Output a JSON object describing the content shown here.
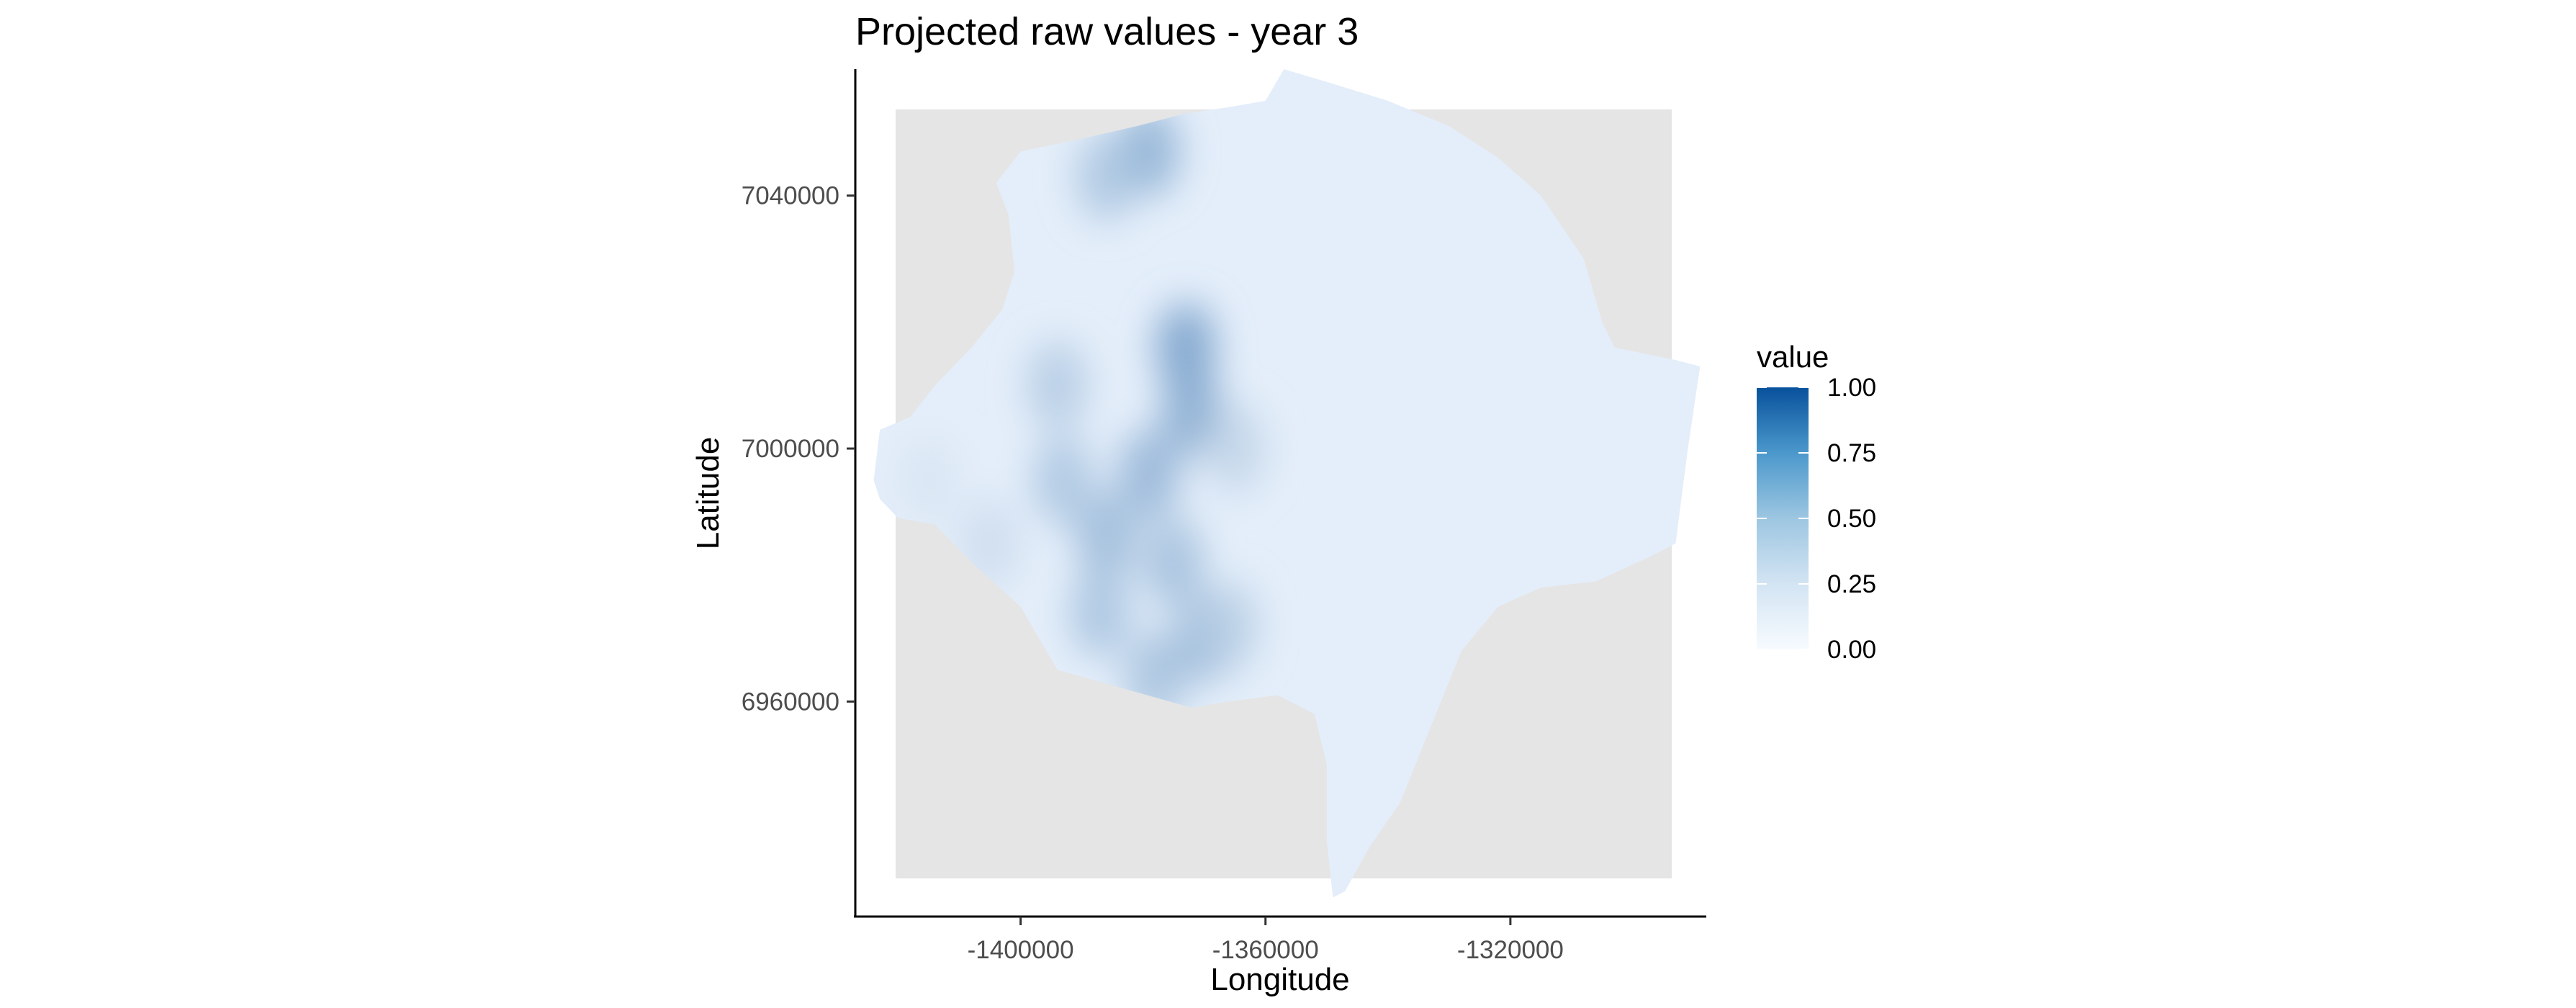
{
  "chart_data": {
    "type": "heatmap",
    "title": "Projected raw values - year 3",
    "xlabel": "Longitude",
    "ylabel": "Latitude",
    "x_ticks": [
      {
        "value": -1400000,
        "label": "-1400000"
      },
      {
        "value": -1360000,
        "label": "-1360000"
      },
      {
        "value": -1320000,
        "label": "-1320000"
      }
    ],
    "y_ticks": [
      {
        "value": 7040000,
        "label": "7040000"
      },
      {
        "value": 7000000,
        "label": "7000000"
      },
      {
        "value": 6960000,
        "label": "6960000"
      }
    ],
    "xlim": [
      -1427000,
      -1288000
    ],
    "ylim": [
      6926000,
      7060000
    ],
    "grid": false,
    "panel_background": "#e5e5e5",
    "legend": {
      "title": "value",
      "placement": "right",
      "color_low": "#f7fbff",
      "color_high": "#08519c",
      "range": [
        0,
        1
      ],
      "breaks": [
        {
          "value": 0.0,
          "label": "0.00"
        },
        {
          "value": 0.25,
          "label": "0.25"
        },
        {
          "value": 0.5,
          "label": "0.50"
        },
        {
          "value": 0.75,
          "label": "0.75"
        },
        {
          "value": 1.0,
          "label": "1.00"
        }
      ]
    },
    "region_outline": [
      [
        -1357000,
        7060000
      ],
      [
        -1350000,
        7058000
      ],
      [
        -1340000,
        7055000
      ],
      [
        -1330000,
        7051000
      ],
      [
        -1322000,
        7046000
      ],
      [
        -1315000,
        7040000
      ],
      [
        -1308000,
        7030000
      ],
      [
        -1305000,
        7020000
      ],
      [
        -1303000,
        7016000
      ],
      [
        -1293000,
        7014000
      ],
      [
        -1289000,
        7013000
      ],
      [
        -1291000,
        7000000
      ],
      [
        -1293000,
        6985000
      ],
      [
        -1297000,
        6983000
      ],
      [
        -1306000,
        6979000
      ],
      [
        -1315000,
        6978000
      ],
      [
        -1322000,
        6975000
      ],
      [
        -1328000,
        6968000
      ],
      [
        -1333000,
        6956000
      ],
      [
        -1338000,
        6944000
      ],
      [
        -1343000,
        6937000
      ],
      [
        -1347000,
        6930000
      ],
      [
        -1349000,
        6929000
      ],
      [
        -1350000,
        6938000
      ],
      [
        -1350000,
        6950000
      ],
      [
        -1352000,
        6958000
      ],
      [
        -1358000,
        6961000
      ],
      [
        -1366000,
        6960000
      ],
      [
        -1372000,
        6959000
      ],
      [
        -1383000,
        6962000
      ],
      [
        -1394000,
        6965000
      ],
      [
        -1400000,
        6975000
      ],
      [
        -1408000,
        6982000
      ],
      [
        -1414000,
        6988000
      ],
      [
        -1420000,
        6989000
      ],
      [
        -1423000,
        6992000
      ],
      [
        -1425000,
        6998000
      ],
      [
        -1424000,
        6995000
      ],
      [
        -1423000,
        7003000
      ],
      [
        -1418000,
        7005000
      ],
      [
        -1414000,
        7010000
      ],
      [
        -1408000,
        7016000
      ],
      [
        -1403000,
        7022000
      ],
      [
        -1401000,
        7028000
      ],
      [
        -1402000,
        7037000
      ],
      [
        -1404000,
        7042000
      ],
      [
        -1400000,
        7047000
      ],
      [
        -1390000,
        7049000
      ],
      [
        -1381000,
        7051000
      ],
      [
        -1373000,
        7053000
      ],
      [
        -1366000,
        7054000
      ],
      [
        -1360000,
        7055000
      ]
    ],
    "hotspots": [
      {
        "x": -1373000,
        "y": 7016000,
        "value": 0.42
      },
      {
        "x": -1372000,
        "y": 7006000,
        "value": 0.38
      },
      {
        "x": -1379000,
        "y": 6996000,
        "value": 0.33
      },
      {
        "x": -1386000,
        "y": 6986000,
        "value": 0.3
      },
      {
        "x": -1375000,
        "y": 6982000,
        "value": 0.28
      },
      {
        "x": -1370000,
        "y": 6970000,
        "value": 0.31
      },
      {
        "x": -1378000,
        "y": 6964000,
        "value": 0.27
      },
      {
        "x": -1387000,
        "y": 6974000,
        "value": 0.26
      },
      {
        "x": -1393000,
        "y": 6995000,
        "value": 0.25
      },
      {
        "x": -1394000,
        "y": 7010000,
        "value": 0.22
      },
      {
        "x": -1379000,
        "y": 7047000,
        "value": 0.35
      },
      {
        "x": -1386000,
        "y": 7043000,
        "value": 0.25
      },
      {
        "x": -1365000,
        "y": 7000000,
        "value": 0.18
      },
      {
        "x": -1366000,
        "y": 6972000,
        "value": 0.2
      },
      {
        "x": -1405000,
        "y": 6985000,
        "value": 0.14
      },
      {
        "x": -1415000,
        "y": 6995000,
        "value": 0.1
      }
    ]
  }
}
